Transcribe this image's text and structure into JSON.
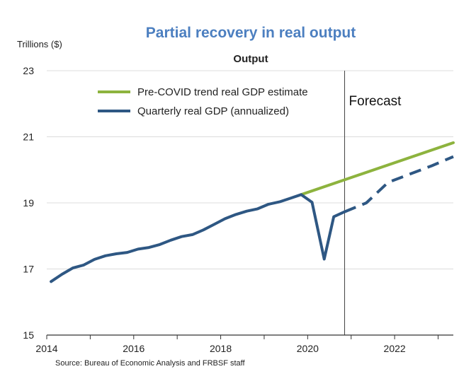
{
  "chart_data": {
    "type": "line",
    "title": "Partial recovery in real output",
    "subtitle": "Output",
    "ylabel": "Trillions ($)",
    "xlabel": "",
    "xlim": [
      2014,
      2023.35
    ],
    "ylim": [
      15,
      23
    ],
    "x_ticks": [
      2014,
      2016,
      2018,
      2020,
      2022
    ],
    "y_ticks": [
      15,
      17,
      19,
      21,
      23
    ],
    "grid": "horizontal",
    "legend_position": "top-left",
    "annotations": [
      {
        "text": "Forecast",
        "x": 2020.85,
        "type": "vertical-line"
      }
    ],
    "source": "Source: Bureau of Economic Analysis and FRBSF staff",
    "series": [
      {
        "name": "Pre-COVID trend real GDP estimate",
        "color": "#8db33e",
        "style": "solid",
        "x": [
          2019.85,
          2023.35
        ],
        "y": [
          19.25,
          20.82
        ]
      },
      {
        "name": "Quarterly real GDP (annualized)",
        "color": "#2e5783",
        "style": "solid",
        "x": [
          2014.1,
          2014.35,
          2014.6,
          2014.85,
          2015.1,
          2015.35,
          2015.6,
          2015.85,
          2016.1,
          2016.35,
          2016.6,
          2016.85,
          2017.1,
          2017.35,
          2017.6,
          2017.85,
          2018.1,
          2018.35,
          2018.6,
          2018.85,
          2019.1,
          2019.35,
          2019.6,
          2019.85,
          2020.1,
          2020.38,
          2020.6,
          2020.85
        ],
        "y": [
          16.62,
          16.84,
          17.03,
          17.12,
          17.29,
          17.4,
          17.46,
          17.5,
          17.6,
          17.65,
          17.74,
          17.87,
          17.98,
          18.04,
          18.18,
          18.35,
          18.52,
          18.65,
          18.75,
          18.82,
          18.96,
          19.03,
          19.14,
          19.25,
          19.02,
          17.3,
          18.58,
          18.73
        ]
      },
      {
        "name": "Forecast",
        "color": "#2e5783",
        "style": "dashed",
        "x": [
          2020.85,
          2021.35,
          2021.85,
          2022.35,
          2022.85,
          2023.35
        ],
        "y": [
          18.73,
          19.0,
          19.62,
          19.87,
          20.12,
          20.4
        ]
      }
    ]
  }
}
